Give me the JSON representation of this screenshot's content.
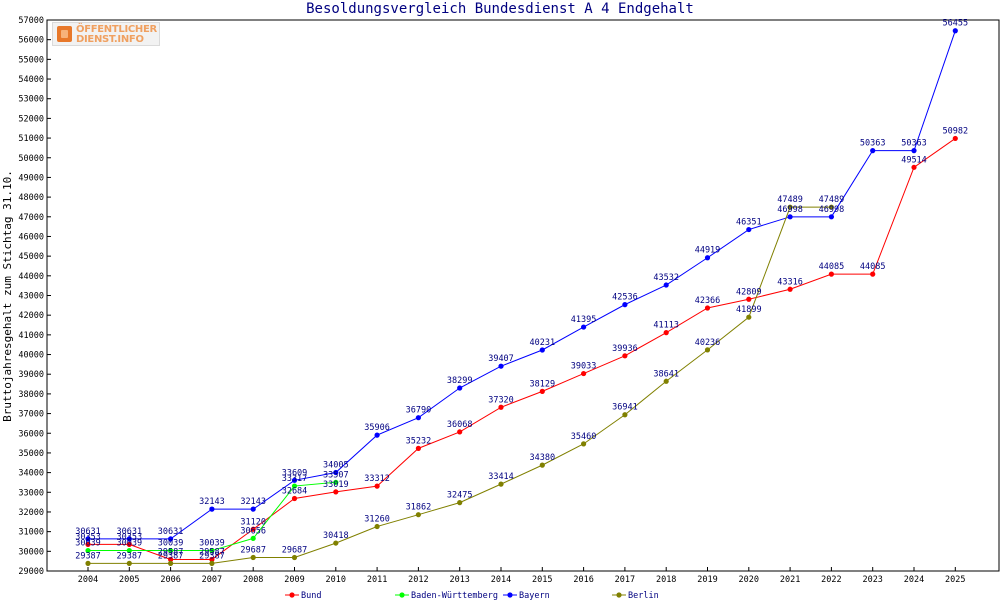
{
  "logo": {
    "line1": "ÖFFENTLICHER",
    "line2": "DIENST.INFO"
  },
  "chart_data": {
    "type": "line",
    "title": "Besoldungsvergleich Bundesdienst A 4 Endgehalt",
    "xlabel": "",
    "ylabel": "Bruttojahresgehalt zum Stichtag 31.10.",
    "ylim": [
      29000,
      57000
    ],
    "ytick_step": 1000,
    "grid": false,
    "legend_position": "bottom",
    "categories": [
      "2004",
      "2005",
      "2006",
      "2007",
      "2008",
      "2009",
      "2010",
      "2011",
      "2012",
      "2013",
      "2014",
      "2015",
      "2016",
      "2017",
      "2018",
      "2019",
      "2020",
      "2021",
      "2022",
      "2023",
      "2024",
      "2025"
    ],
    "series": [
      {
        "name": "Bund",
        "color": "#ff0000",
        "values": [
          30353,
          30353,
          29587,
          29587,
          31120,
          32684,
          33019,
          33312,
          35232,
          36068,
          37320,
          38129,
          39033,
          39936,
          41113,
          42366,
          42809,
          43316,
          44085,
          44085,
          49514,
          50982
        ]
      },
      {
        "name": "Baden-Württemberg",
        "color": "#00ff00",
        "values": [
          30039,
          30039,
          30039,
          30039,
          30656,
          33317,
          33507,
          null,
          null,
          null,
          null,
          null,
          null,
          null,
          null,
          null,
          null,
          null,
          null,
          null,
          null,
          null
        ]
      },
      {
        "name": "Bayern",
        "color": "#0000ff",
        "values": [
          30631,
          30631,
          30631,
          32143,
          32143,
          33609,
          34005,
          35906,
          36790,
          38299,
          39407,
          40231,
          41395,
          42536,
          43532,
          44919,
          46351,
          46998,
          46998,
          50363,
          50363,
          56455
        ]
      },
      {
        "name": "Berlin",
        "color": "#808000",
        "values": [
          29387,
          29387,
          29387,
          29387,
          29687,
          29687,
          30418,
          31260,
          31862,
          32475,
          33414,
          34380,
          35460,
          36941,
          38641,
          40236,
          41899,
          47489,
          47489,
          null,
          null,
          null
        ]
      }
    ]
  }
}
